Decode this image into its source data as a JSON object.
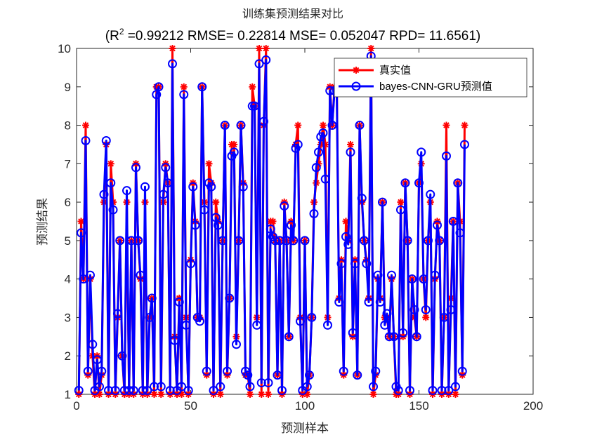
{
  "chart_data": {
    "type": "line",
    "title": "训练集预测结果对比",
    "subtitle": {
      "prefix": "(R",
      "sup": "2",
      "rest": " =0.99212 RMSE= 0.22814 MSE= 0.052047 RPD= 11.6561)"
    },
    "xlabel": "预测样本",
    "ylabel": "预测结果",
    "xlim": [
      0,
      200
    ],
    "ylim": [
      1,
      10
    ],
    "xticks": [
      0,
      50,
      100,
      150,
      200
    ],
    "yticks": [
      1,
      2,
      3,
      4,
      5,
      6,
      7,
      8,
      9,
      10
    ],
    "grid": false,
    "legend_position": "top-right",
    "colors": {
      "actual": "#ff0000",
      "predicted": "#0000ff",
      "axis": "#262626"
    },
    "series": [
      {
        "name": "真实值",
        "marker": "asterisk",
        "values": [
          1,
          5.5,
          4,
          8,
          1.5,
          4,
          2,
          1,
          2,
          1,
          1.5,
          6,
          7.5,
          1,
          7,
          6,
          1,
          3,
          5,
          2,
          1,
          6,
          1,
          5,
          1,
          7,
          5,
          4,
          1,
          6,
          1,
          3,
          3.5,
          1,
          9,
          9,
          1,
          6,
          7,
          6.5,
          1,
          10,
          2.5,
          1,
          3.5,
          1,
          9,
          3,
          1,
          4.5,
          6.5,
          5.5,
          3,
          3,
          9,
          6,
          1.5,
          7,
          6.5,
          1,
          6,
          5.5,
          1,
          5,
          8,
          1.5,
          3.5,
          7.5,
          7.5,
          2.5,
          5,
          8,
          6.5,
          1.5,
          1.5,
          1,
          9,
          8.5,
          3,
          10,
          1,
          8,
          10,
          1,
          5.5,
          5.5,
          5,
          1.5,
          5,
          1,
          6,
          5,
          2.5,
          5.5,
          5,
          7.5,
          8,
          3,
          1,
          5,
          1,
          1.5,
          3,
          6,
          6.5,
          7,
          7.5,
          8,
          7.5,
          3,
          9,
          8,
          9,
          9,
          3.5,
          4.5,
          1.5,
          5.5,
          5,
          7.5,
          2.5,
          4.5,
          1.5,
          8,
          6,
          5,
          4.5,
          3.5,
          10,
          1,
          1.5,
          4,
          3.5,
          6,
          3,
          3,
          2.5,
          4,
          2.5,
          1,
          1,
          6,
          2.5,
          6.5,
          5,
          1,
          4,
          3,
          2.5,
          6.5,
          7,
          4,
          3,
          5,
          6,
          1,
          4,
          5.5,
          5,
          1,
          3,
          8,
          1,
          3.5,
          5.5,
          1,
          6.5,
          5.5,
          1.5,
          8
        ]
      },
      {
        "name": "bayes-CNN-GRU预测值",
        "marker": "circle",
        "values": [
          1.1,
          5.2,
          4,
          7.6,
          1.6,
          4.1,
          2.3,
          1.1,
          1.9,
          1.2,
          1.6,
          6.2,
          7.6,
          1.1,
          6.5,
          5.8,
          1.1,
          3.1,
          5,
          2,
          1.1,
          6.3,
          1.1,
          5,
          1.1,
          6.9,
          5,
          4.1,
          1.1,
          6.4,
          1.1,
          3,
          3.5,
          1.2,
          8.8,
          9,
          1.2,
          6.2,
          6.9,
          6.5,
          1.1,
          9.6,
          2.4,
          1.1,
          3.4,
          1.2,
          8.8,
          2.8,
          1.1,
          4.4,
          6.4,
          5.4,
          3,
          2.9,
          9,
          5.8,
          1.6,
          6.5,
          6.4,
          1.1,
          5.6,
          5.4,
          1.2,
          5,
          8,
          1.6,
          3.5,
          7.2,
          7.3,
          2.3,
          5,
          8,
          6.4,
          1.6,
          1.5,
          1.2,
          8.5,
          8.5,
          2.8,
          9.6,
          1.3,
          8.1,
          9.7,
          1.3,
          5.3,
          5.1,
          5,
          1.5,
          5,
          1.1,
          5.9,
          5,
          2.5,
          5.4,
          5,
          7.4,
          7.5,
          2.9,
          1.1,
          5,
          1.2,
          1.5,
          3,
          5.7,
          6.9,
          7.3,
          7.7,
          7.8,
          6.6,
          2.8,
          8.9,
          8,
          8.9,
          8.9,
          3.4,
          4.4,
          1.6,
          5.1,
          4.9,
          7.3,
          2.6,
          4.4,
          1.5,
          8,
          6.1,
          5,
          4.4,
          3.4,
          9.8,
          1.2,
          1.6,
          4.1,
          3.4,
          6,
          2.8,
          3.1,
          2.5,
          4.1,
          2.5,
          1.2,
          1.1,
          5.8,
          2.6,
          6.5,
          5,
          1.1,
          4,
          3.2,
          2.5,
          6.5,
          7.3,
          4,
          3.2,
          5,
          6.2,
          1.1,
          4.1,
          5.4,
          5,
          1.1,
          3,
          7.2,
          1.1,
          3.2,
          5.5,
          1.2,
          6.5,
          5.2,
          1.6,
          7.5
        ]
      }
    ]
  }
}
